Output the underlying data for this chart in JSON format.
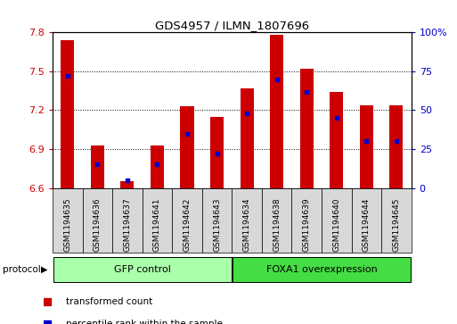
{
  "title": "GDS4957 / ILMN_1807696",
  "samples": [
    "GSM1194635",
    "GSM1194636",
    "GSM1194637",
    "GSM1194641",
    "GSM1194642",
    "GSM1194643",
    "GSM1194634",
    "GSM1194638",
    "GSM1194639",
    "GSM1194640",
    "GSM1194644",
    "GSM1194645"
  ],
  "transformed_count": [
    7.74,
    6.93,
    6.65,
    6.93,
    7.23,
    7.15,
    7.37,
    7.78,
    7.52,
    7.34,
    7.24,
    7.24
  ],
  "percentile_rank": [
    72,
    15,
    5,
    15,
    35,
    22,
    48,
    70,
    62,
    45,
    30,
    30
  ],
  "y_min": 6.6,
  "y_max": 7.8,
  "y_ticks": [
    6.6,
    6.9,
    7.2,
    7.5,
    7.8
  ],
  "right_y_ticks": [
    0,
    25,
    50,
    75,
    100
  ],
  "right_y_labels": [
    "0",
    "25",
    "50",
    "75",
    "100%"
  ],
  "bar_color": "#cc0000",
  "dot_color": "#0000cc",
  "group1_label": "GFP control",
  "group2_label": "FOXA1 overexpression",
  "group1_color": "#aaffaa",
  "group2_color": "#44dd44",
  "protocol_label": "protocol",
  "legend1": "transformed count",
  "legend2": "percentile rank within the sample",
  "left_tick_color": "#cc0000",
  "right_tick_color": "#0000cc",
  "tick_bg": "#d8d8d8",
  "n_gfp": 6,
  "n_foxa1": 6
}
